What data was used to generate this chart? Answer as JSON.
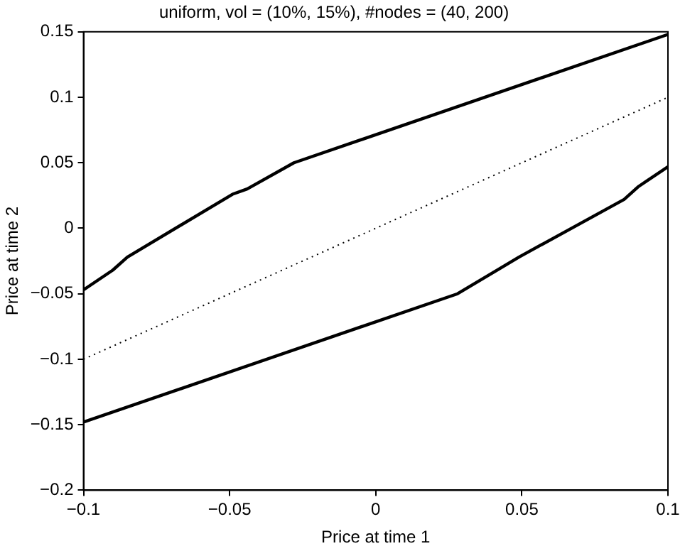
{
  "chart_data": {
    "type": "line",
    "title": "uniform, vol = (10%, 15%), #nodes = (40, 200)",
    "xlabel": "Price at time 1",
    "ylabel": "Price at time 2",
    "xlim": [
      -0.1,
      0.1
    ],
    "xticks": [
      -0.1,
      -0.05,
      0,
      0.05,
      0.1
    ],
    "ylim": [
      -0.2,
      0.15
    ],
    "yticks": [
      -0.2,
      -0.15,
      -0.1,
      -0.05,
      0,
      0.05,
      0.1,
      0.15
    ],
    "grid": false,
    "legend": false,
    "marker": "none",
    "series": [
      {
        "color": "#000000",
        "line_style": "solid",
        "x": [
          -0.1,
          -0.09,
          -0.085,
          -0.049,
          -0.044,
          -0.028,
          0.1
        ],
        "values": [
          -0.047,
          -0.032,
          -0.022,
          0.026,
          0.03,
          0.05,
          0.148
        ]
      },
      {
        "color": "#000000",
        "line_style": "solid",
        "x": [
          -0.1,
          0.028,
          0.043,
          0.049,
          0.085,
          0.09,
          0.1
        ],
        "values": [
          -0.148,
          -0.05,
          -0.03,
          -0.022,
          0.022,
          0.032,
          0.047
        ]
      },
      {
        "color": "#000000",
        "line_style": "dotted",
        "x": [
          -0.1,
          0.1
        ],
        "values": [
          -0.1,
          0.1
        ]
      }
    ]
  }
}
